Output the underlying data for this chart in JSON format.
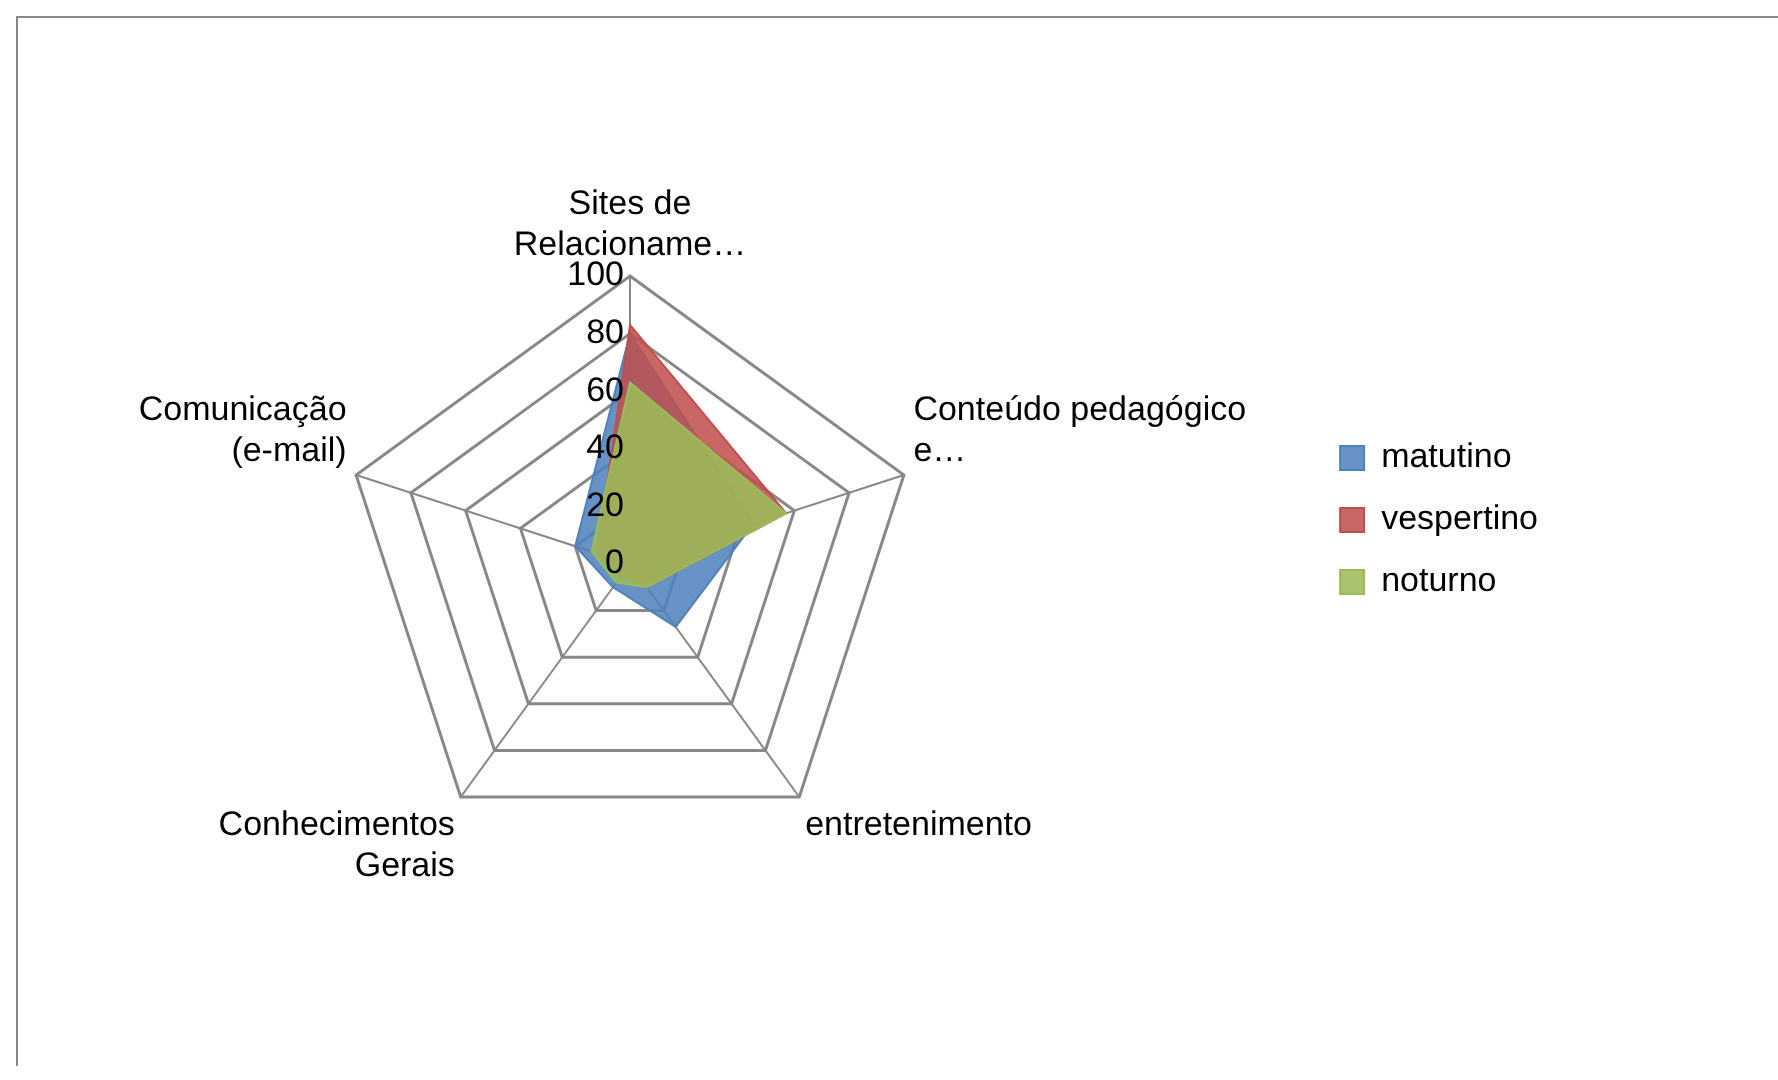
{
  "chart_data": {
    "type": "radar",
    "categories": [
      "Sites de Relacioname…",
      "Conteúdo pedagógico e…",
      "entretenimento",
      "Conhecimentos Gerais",
      "Comunicação (e-mail)"
    ],
    "ylim": [
      0,
      100
    ],
    "yticks": [
      0,
      20,
      40,
      60,
      80,
      100
    ],
    "legend": "right",
    "series": [
      {
        "name": "matutino",
        "color": "#4f81bd",
        "values": [
          80,
          45,
          27,
          10,
          20
        ]
      },
      {
        "name": "vespertino",
        "color": "#c0504d",
        "values": [
          83,
          57,
          10,
          5,
          12
        ]
      },
      {
        "name": "noturno",
        "color": "#9bbb59",
        "values": [
          63,
          57,
          10,
          8,
          14
        ]
      }
    ]
  }
}
